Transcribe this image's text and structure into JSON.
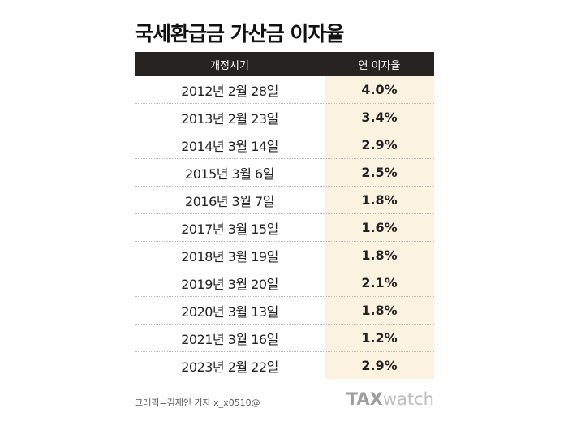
{
  "title": "국세환급금 가산금 이자율",
  "table": {
    "headers": [
      "개정시기",
      "연 이자율"
    ],
    "rows": [
      {
        "date": "2012년 2월 28일",
        "rate": "4.0%"
      },
      {
        "date": "2013년 2월 23일",
        "rate": "3.4%"
      },
      {
        "date": "2014년 3월 14일",
        "rate": "2.9%"
      },
      {
        "date": "2015년 3월 6일",
        "rate": "2.5%"
      },
      {
        "date": "2016년 3월 7일",
        "rate": "1.8%"
      },
      {
        "date": "2017년 3월 15일",
        "rate": "1.6%"
      },
      {
        "date": "2018년 3월 19일",
        "rate": "1.8%"
      },
      {
        "date": "2019년 3월 20일",
        "rate": "2.1%"
      },
      {
        "date": "2020년 3월 13일",
        "rate": "1.8%"
      },
      {
        "date": "2021년 3월 16일",
        "rate": "1.2%"
      },
      {
        "date": "2023년 2월 22일",
        "rate": "2.9%"
      }
    ]
  },
  "credit": "그래픽=김재인 기자 x_x0510@",
  "logo": {
    "part1": "TAX",
    "part2": "watch"
  },
  "colors": {
    "header_bg": "#262322",
    "rate_column_bg": "#fbf2df"
  }
}
